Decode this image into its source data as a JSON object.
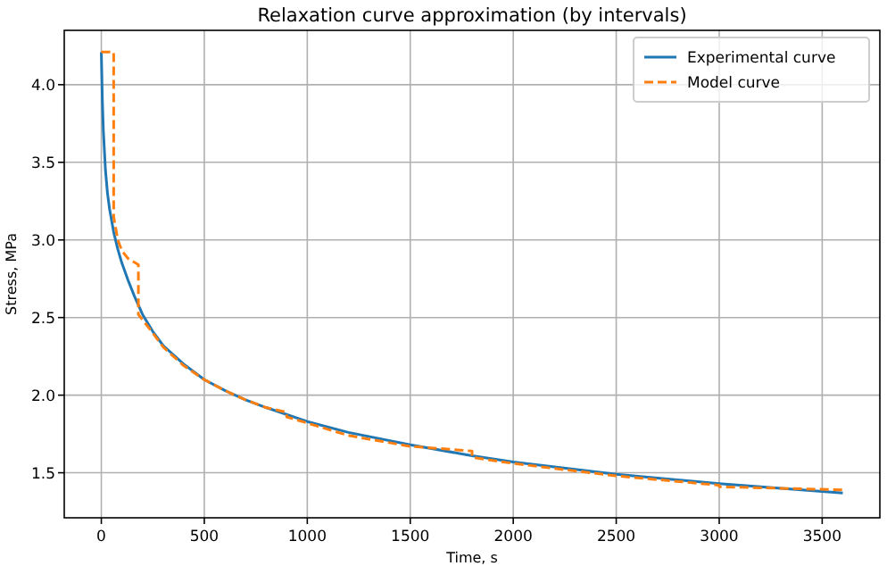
{
  "chart_data": {
    "type": "line",
    "title": "Relaxation curve approximation (by intervals)",
    "xlabel": "Time, s",
    "ylabel": "Stress, MPa",
    "xlim": [
      -180,
      3780
    ],
    "ylim": [
      1.21,
      4.35
    ],
    "xticks": [
      0,
      500,
      1000,
      1500,
      2000,
      2500,
      3000,
      3500
    ],
    "yticks": [
      1.5,
      {
        "value": 2,
        "label": "2.0"
      },
      2.5,
      {
        "value": 3,
        "label": "3.0"
      },
      3.5,
      {
        "value": 4,
        "label": "4.0"
      }
    ],
    "grid": true,
    "legend": "top right",
    "series": [
      {
        "name": "Experimental curve",
        "color": "#1f77b4",
        "line_style": "solid",
        "x": [
          0,
          5,
          10,
          20,
          30,
          40,
          60,
          80,
          100,
          130,
          160,
          200,
          250,
          300,
          400,
          500,
          600,
          700,
          800,
          1000,
          1200,
          1500,
          1800,
          2000,
          2500,
          3000,
          3600
        ],
        "values": [
          4.21,
          3.9,
          3.7,
          3.45,
          3.3,
          3.2,
          3.05,
          2.94,
          2.85,
          2.74,
          2.64,
          2.52,
          2.41,
          2.32,
          2.2,
          2.1,
          2.03,
          1.97,
          1.92,
          1.83,
          1.76,
          1.68,
          1.61,
          1.57,
          1.49,
          1.43,
          1.37
        ]
      },
      {
        "name": "Model curve",
        "color": "#ff7f0e",
        "line_style": "dashed",
        "x": [
          0,
          60,
          60,
          80,
          100,
          130,
          180,
          180,
          250,
          300,
          400,
          500,
          600,
          700,
          800,
          900,
          900,
          1000,
          1200,
          1500,
          1800,
          1800,
          2000,
          2500,
          3000,
          3000,
          3600
        ],
        "values": [
          4.21,
          4.21,
          3.15,
          3.0,
          2.93,
          2.88,
          2.84,
          2.52,
          2.4,
          2.31,
          2.19,
          2.1,
          2.03,
          1.97,
          1.92,
          1.89,
          1.86,
          1.82,
          1.74,
          1.67,
          1.64,
          1.6,
          1.56,
          1.48,
          1.42,
          1.41,
          1.39
        ]
      }
    ]
  }
}
